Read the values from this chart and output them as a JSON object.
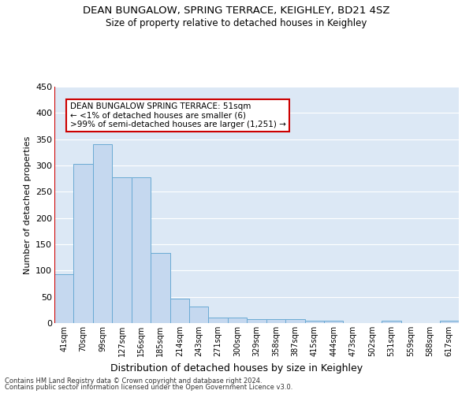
{
  "title": "DEAN BUNGALOW, SPRING TERRACE, KEIGHLEY, BD21 4SZ",
  "subtitle": "Size of property relative to detached houses in Keighley",
  "xlabel": "Distribution of detached houses by size in Keighley",
  "ylabel": "Number of detached properties",
  "categories": [
    "41sqm",
    "70sqm",
    "99sqm",
    "127sqm",
    "156sqm",
    "185sqm",
    "214sqm",
    "243sqm",
    "271sqm",
    "300sqm",
    "329sqm",
    "358sqm",
    "387sqm",
    "415sqm",
    "444sqm",
    "473sqm",
    "502sqm",
    "531sqm",
    "559sqm",
    "588sqm",
    "617sqm"
  ],
  "values": [
    93,
    303,
    340,
    277,
    277,
    133,
    47,
    31,
    10,
    10,
    8,
    8,
    8,
    5,
    4,
    0,
    0,
    4,
    0,
    0,
    4
  ],
  "bar_color": "#c5d8ef",
  "bar_edge_color": "#6aaad4",
  "annotation_box_text": "DEAN BUNGALOW SPRING TERRACE: 51sqm\n← <1% of detached houses are smaller (6)\n>99% of semi-detached houses are larger (1,251) →",
  "annotation_box_color": "#ffffff",
  "annotation_box_edge_color": "#cc0000",
  "ylim": [
    0,
    450
  ],
  "yticks": [
    0,
    50,
    100,
    150,
    200,
    250,
    300,
    350,
    400,
    450
  ],
  "background_color": "#dce8f5",
  "grid_color": "#ffffff",
  "footer_line1": "Contains HM Land Registry data © Crown copyright and database right 2024.",
  "footer_line2": "Contains public sector information licensed under the Open Government Licence v3.0."
}
